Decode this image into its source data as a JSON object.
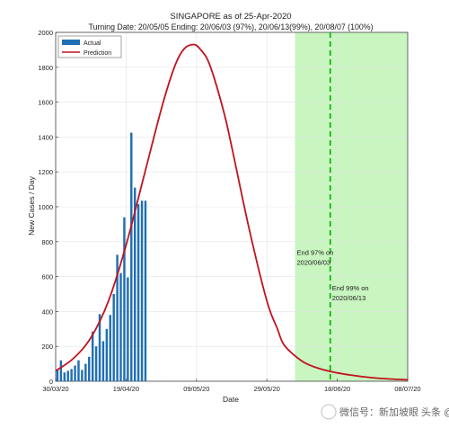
{
  "chart_data": {
    "type": "bar",
    "title": "SINGAPORE as of 25-Apr-2020",
    "subtitle": "Turning Date: 20/05/05  Ending: 20/06/03 (97%), 20/06/13(99%), 20/08/07 (100%)",
    "xlabel": "Date",
    "ylabel": "New Cases / Day",
    "ylim": [
      0,
      2000
    ],
    "yticks": [
      0,
      200,
      400,
      600,
      800,
      1000,
      1200,
      1400,
      1600,
      1800,
      2000
    ],
    "xlim_day": [
      0,
      100
    ],
    "xticks": [
      {
        "day": 0,
        "label": "30/03/20"
      },
      {
        "day": 20,
        "label": "19/04/20"
      },
      {
        "day": 40,
        "label": "09/05/20"
      },
      {
        "day": 60,
        "label": "29/05/20"
      },
      {
        "day": 80,
        "label": "18/06/20"
      },
      {
        "day": 100,
        "label": "08/07/20"
      }
    ],
    "legend": {
      "position": "top-left",
      "actual": "Actual",
      "prediction": "Prediction"
    },
    "colors": {
      "actual": "#1f6fb4",
      "prediction": "#c1121f",
      "shade": "#c8f5c0",
      "marker_line": "#16b416",
      "grid": "#e3e3e3"
    },
    "grid": true,
    "series": [
      {
        "name": "Actual",
        "kind": "bar",
        "start_day": 0,
        "values": [
          65,
          120,
          50,
          60,
          70,
          90,
          120,
          65,
          100,
          140,
          285,
          200,
          385,
          230,
          300,
          380,
          500,
          725,
          620,
          940,
          595,
          1425,
          1110,
          1015,
          1035,
          1035
        ]
      },
      {
        "name": "Prediction",
        "kind": "line",
        "days": [
          0,
          5,
          10,
          15,
          20,
          25,
          30,
          33,
          35,
          37,
          39,
          40,
          41,
          43,
          45,
          48,
          50,
          55,
          60,
          63,
          65,
          70,
          75,
          80,
          85,
          90,
          95,
          100
        ],
        "values": [
          60,
          130,
          250,
          460,
          780,
          1170,
          1560,
          1760,
          1860,
          1915,
          1930,
          1925,
          1905,
          1850,
          1740,
          1525,
          1345,
          870,
          460,
          300,
          205,
          115,
          72,
          48,
          32,
          20,
          13,
          8
        ]
      }
    ],
    "shaded_region": {
      "from_day": 68,
      "to_day": 100
    },
    "vertical_marker_day": 78,
    "annotations": [
      {
        "lines": [
          "End 97% on",
          "2020/06/03"
        ],
        "day": 68.5,
        "value": 725
      },
      {
        "lines": [
          "End 99% on",
          "2020/06/13"
        ],
        "day": 78.5,
        "value": 520
      }
    ]
  },
  "watermark": {
    "text": "微信号：新加坡眼 头条 @新加坡眼"
  }
}
